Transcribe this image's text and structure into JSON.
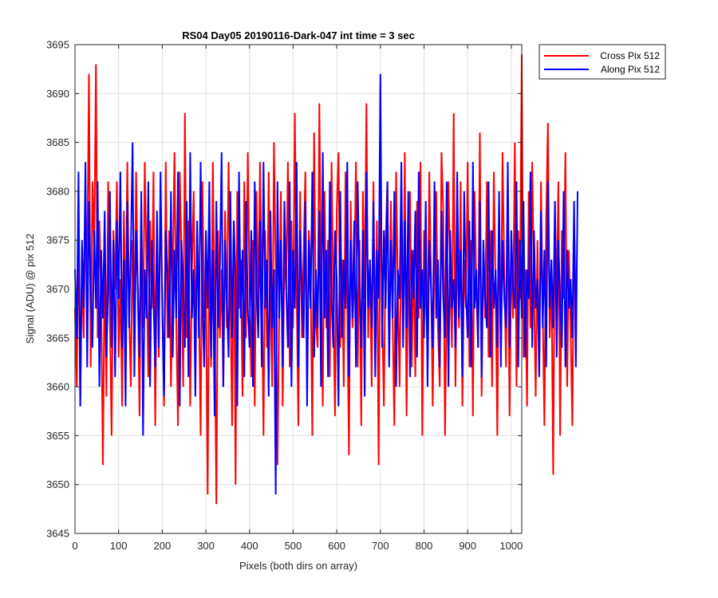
{
  "chart_data": {
    "type": "line",
    "title": "RS04 Day05 20190116-Dark-047 int time = 3 sec",
    "xlabel": "Pixels (both dirs on array)",
    "ylabel": "Signal (ADU) @ pix 512",
    "xlim": [
      0,
      1024
    ],
    "ylim": [
      3645,
      3695
    ],
    "xticks": [
      0,
      100,
      200,
      300,
      400,
      500,
      600,
      700,
      800,
      900,
      1000
    ],
    "yticks": [
      3645,
      3650,
      3655,
      3660,
      3665,
      3670,
      3675,
      3680,
      3685,
      3690,
      3695
    ],
    "grid": true,
    "legend_position": "outside top-right",
    "x_step": 4,
    "series": [
      {
        "name": "Cross Pix 512",
        "color": "#ff0000",
        "values": [
          3668,
          3660,
          3677,
          3658,
          3672,
          3665,
          3679,
          3671,
          3692,
          3662,
          3681,
          3674,
          3693,
          3665,
          3677,
          3669,
          3652,
          3673,
          3659,
          3681,
          3667,
          3655,
          3676,
          3670,
          3681,
          3663,
          3671,
          3658,
          3678,
          3666,
          3683,
          3668,
          3660,
          3675,
          3664,
          3682,
          3670,
          3657,
          3679,
          3666,
          3683,
          3672,
          3661,
          3677,
          3668,
          3682,
          3656,
          3675,
          3663,
          3680,
          3669,
          3658,
          3683,
          3665,
          3676,
          3660,
          3671,
          3684,
          3667,
          3656,
          3682,
          3674,
          3660,
          3688,
          3665,
          3677,
          3658,
          3672,
          3680,
          3664,
          3676,
          3669,
          3655,
          3681,
          3667,
          3671,
          3649,
          3675,
          3662,
          3683,
          3668,
          3648,
          3676,
          3665,
          3672,
          3660,
          3678,
          3666,
          3683,
          3670,
          3656,
          3677,
          3650,
          3680,
          3668,
          3673,
          3659,
          3681,
          3665,
          3684,
          3670,
          3661,
          3675,
          3658,
          3680,
          3668,
          3683,
          3671,
          3655,
          3676,
          3664,
          3682,
          3669,
          3660,
          3685,
          3672,
          3652,
          3667,
          3680,
          3658,
          3674,
          3670,
          3683,
          3662,
          3677,
          3666,
          3688,
          3670,
          3656,
          3680,
          3665,
          3674,
          3682,
          3660,
          3676,
          3671,
          3655,
          3686,
          3667,
          3664,
          3689,
          3672,
          3658,
          3680,
          3666,
          3675,
          3661,
          3683,
          3669,
          3657,
          3678,
          3684,
          3664,
          3673,
          3660,
          3682,
          3668,
          3653,
          3679,
          3666,
          3671,
          3683,
          3662,
          3675,
          3656,
          3680,
          3669,
          3689,
          3665,
          3673,
          3660,
          3681,
          3664,
          3677,
          3652,
          3683,
          3668,
          3658,
          3675,
          3681,
          3663,
          3679,
          3667,
          3656,
          3682,
          3670,
          3660,
          3676,
          3665,
          3684,
          3657,
          3672,
          3680,
          3662,
          3674,
          3661,
          3679,
          3667,
          3683,
          3655,
          3676,
          3669,
          3664,
          3682,
          3671,
          3658,
          3675,
          3680,
          3666,
          3660,
          3684,
          3678,
          3655,
          3669,
          3681,
          3672,
          3664,
          3688,
          3660,
          3676,
          3666,
          3681,
          3658,
          3673,
          3668,
          3683,
          3662,
          3675,
          3657,
          3680,
          3670,
          3664,
          3686,
          3659,
          3674,
          3667,
          3681,
          3663,
          3676,
          3660,
          3682,
          3670,
          3655,
          3678,
          3664,
          3684,
          3672,
          3662,
          3679,
          3657,
          3674,
          3667,
          3685,
          3660,
          3676,
          3669,
          3694,
          3663,
          3672,
          3658,
          3680,
          3666,
          3683,
          3670,
          3659,
          3675,
          3662,
          3681,
          3668,
          3656,
          3677,
          3687,
          3665,
          3672,
          3651,
          3679,
          3668,
          3681,
          3655,
          3676,
          3669,
          3684,
          3660,
          3674,
          3666,
          3656,
          3677,
          3668
        ]
      },
      {
        "name": "Along Pix 512",
        "color": "#0000ff",
        "values": [
          3672,
          3665,
          3682,
          3658,
          3675,
          3668,
          3683,
          3662,
          3679,
          3670,
          3664,
          3676,
          3668,
          3681,
          3660,
          3674,
          3667,
          3678,
          3663,
          3670,
          3680,
          3664,
          3675,
          3661,
          3677,
          3669,
          3682,
          3664,
          3673,
          3658,
          3679,
          3666,
          3674,
          3685,
          3661,
          3676,
          3670,
          3663,
          3680,
          3655,
          3672,
          3667,
          3681,
          3660,
          3675,
          3669,
          3662,
          3678,
          3664,
          3682,
          3668,
          3659,
          3676,
          3671,
          3665,
          3680,
          3663,
          3674,
          3667,
          3682,
          3658,
          3675,
          3670,
          3664,
          3679,
          3661,
          3684,
          3667,
          3672,
          3659,
          3677,
          3665,
          3683,
          3669,
          3662,
          3676,
          3668,
          3681,
          3663,
          3674,
          3657,
          3679,
          3666,
          3672,
          3684,
          3660,
          3675,
          3669,
          3663,
          3680,
          3665,
          3677,
          3671,
          3658,
          3682,
          3667,
          3674,
          3661,
          3679,
          3668,
          3664,
          3676,
          3660,
          3681,
          3670,
          3665,
          3677,
          3662,
          3683,
          3668,
          3673,
          3659,
          3678,
          3666,
          3672,
          3649,
          3681,
          3667,
          3675,
          3662,
          3679,
          3670,
          3664,
          3681,
          3660,
          3674,
          3668,
          3683,
          3662,
          3676,
          3670,
          3665,
          3679,
          3658,
          3675,
          3668,
          3682,
          3663,
          3672,
          3666,
          3678,
          3660,
          3684,
          3667,
          3674,
          3661,
          3681,
          3669,
          3664,
          3676,
          3671,
          3658,
          3680,
          3665,
          3673,
          3668,
          3683,
          3661,
          3675,
          3667,
          3677,
          3662,
          3681,
          3670,
          3664,
          3676,
          3659,
          3682,
          3668,
          3673,
          3666,
          3679,
          3661,
          3674,
          3669,
          3692,
          3664,
          3676,
          3668,
          3681,
          3662,
          3675,
          3667,
          3680,
          3660,
          3672,
          3669,
          3683,
          3664,
          3677,
          3666,
          3680,
          3661,
          3674,
          3669,
          3678,
          3663,
          3682,
          3668,
          3672,
          3665,
          3679,
          3660,
          3675,
          3670,
          3664,
          3681,
          3667,
          3673,
          3662,
          3678,
          3669,
          3665,
          3681,
          3660,
          3676,
          3668,
          3671,
          3664,
          3682,
          3667,
          3674,
          3661,
          3680,
          3670,
          3665,
          3677,
          3662,
          3683,
          3668,
          3672,
          3664,
          3679,
          3661,
          3675,
          3669,
          3666,
          3681,
          3663,
          3676,
          3668,
          3672,
          3664,
          3680,
          3662,
          3675,
          3669,
          3666,
          3683,
          3664,
          3676,
          3670,
          3668,
          3681,
          3662,
          3675,
          3667,
          3679,
          3663,
          3672,
          3669,
          3682,
          3664,
          3676,
          3668,
          3671,
          3661,
          3678,
          3666,
          3674,
          3662,
          3681,
          3668,
          3673,
          3666,
          3679,
          3663,
          3675,
          3669,
          3664,
          3680,
          3662,
          3674,
          3668,
          3671,
          3665,
          3679,
          3662,
          3680
        ]
      }
    ]
  }
}
